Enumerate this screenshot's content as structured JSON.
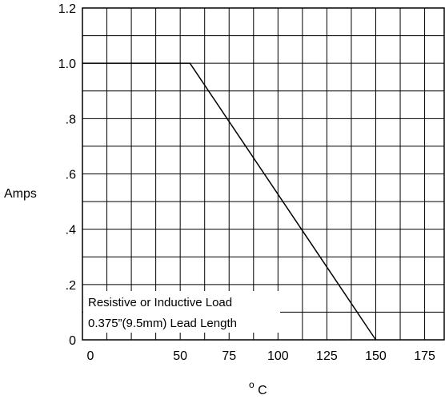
{
  "chart_data": {
    "type": "line",
    "xlabel_sup": "o",
    "xlabel_main": "C",
    "ylabel": "Amps",
    "xlim": [
      0,
      185
    ],
    "ylim": [
      0,
      1.2
    ],
    "x_tick_labels": [
      "0",
      "50",
      "75",
      "100",
      "125",
      "150",
      "175"
    ],
    "x_tick_values": [
      0,
      50,
      75,
      100,
      125,
      150,
      175
    ],
    "y_tick_labels": [
      "0",
      ".2",
      ".4",
      ".6",
      ".8",
      "1.0",
      "1.2"
    ],
    "y_tick_values": [
      0,
      0.2,
      0.4,
      0.6,
      0.8,
      1.0,
      1.2
    ],
    "grid": true,
    "series": [
      {
        "x": [
          0,
          55,
          150
        ],
        "y": [
          1.0,
          1.0,
          0
        ]
      }
    ],
    "annotation_lines": [
      "Resistive or Inductive Load",
      "0.375”(9.5mm) Lead Length"
    ]
  }
}
